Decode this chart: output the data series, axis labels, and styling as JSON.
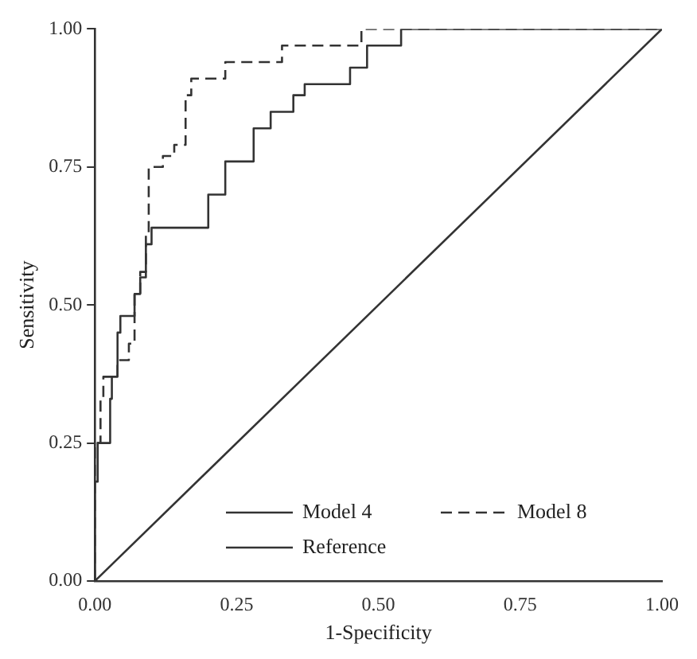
{
  "chart_data": {
    "type": "step",
    "xlabel": "1-Specificity",
    "ylabel": "Sensitivity",
    "xlim": [
      0,
      1
    ],
    "ylim": [
      0,
      1
    ],
    "xticks": [
      {
        "value": 0,
        "label": "0.00"
      },
      {
        "value": 0.25,
        "label": "0.25"
      },
      {
        "value": 0.5,
        "label": "0.50"
      },
      {
        "value": 0.75,
        "label": "0.75"
      },
      {
        "value": 1,
        "label": "1.00"
      }
    ],
    "yticks": [
      {
        "value": 0,
        "label": "0.00"
      },
      {
        "value": 0.25,
        "label": "0.25"
      },
      {
        "value": 0.5,
        "label": "0.50"
      },
      {
        "value": 0.75,
        "label": "0.75"
      },
      {
        "value": 1,
        "label": "1.00"
      }
    ],
    "grid": false,
    "legend": "bottom right",
    "marker": "none",
    "series": [
      {
        "name": "Model 4",
        "color": "#333333",
        "line_style": "solid",
        "x": [
          0,
          0.005,
          0.027,
          0.03,
          0.04,
          0.045,
          0.07,
          0.08,
          0.09,
          0.1,
          0.2,
          0.23,
          0.28,
          0.31,
          0.35,
          0.37,
          0.45,
          0.48,
          0.54,
          0.78,
          1
        ],
        "values": [
          0,
          0.18,
          0.25,
          0.33,
          0.37,
          0.45,
          0.48,
          0.52,
          0.55,
          0.61,
          0.64,
          0.7,
          0.76,
          0.82,
          0.85,
          0.88,
          0.9,
          0.93,
          0.97,
          1,
          1
        ]
      },
      {
        "name": "Model 8",
        "color": "#333333",
        "line_style": "dashed",
        "x": [
          0,
          0.01,
          0.015,
          0.04,
          0.06,
          0.07,
          0.08,
          0.09,
          0.095,
          0.12,
          0.14,
          0.16,
          0.17,
          0.23,
          0.33,
          0.47,
          0.67,
          1
        ],
        "values": [
          0,
          0.25,
          0.33,
          0.37,
          0.4,
          0.43,
          0.52,
          0.56,
          0.63,
          0.75,
          0.77,
          0.79,
          0.88,
          0.91,
          0.94,
          0.97,
          1,
          1
        ]
      },
      {
        "name": "Reference",
        "type": "line",
        "color": "#333333",
        "line_style": "solid",
        "x": [
          0,
          1
        ],
        "values": [
          0,
          1
        ]
      }
    ]
  }
}
